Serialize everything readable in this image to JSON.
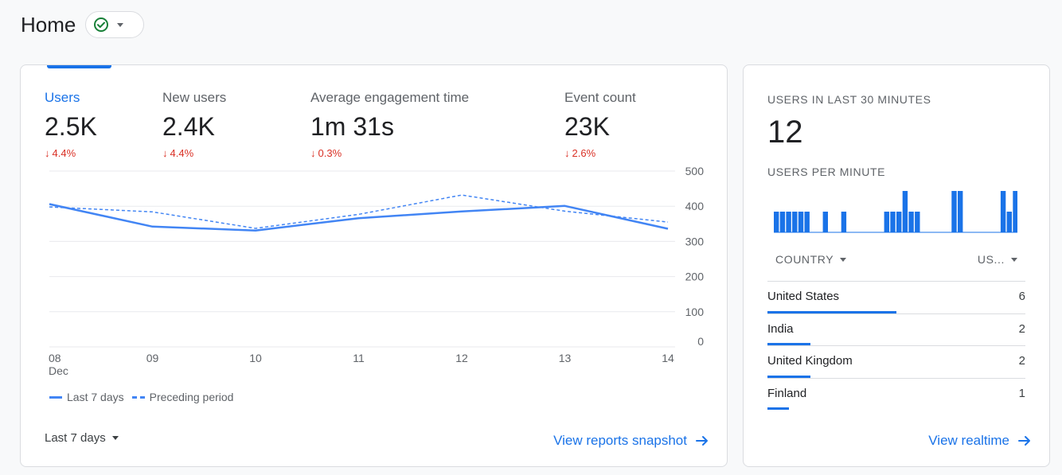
{
  "header": {
    "title": "Home",
    "status_icon": "check-circle-icon",
    "status_color": "#188038"
  },
  "metrics": [
    {
      "label": "Users",
      "value": "2.5K",
      "delta": "4.4%",
      "active": true
    },
    {
      "label": "New users",
      "value": "2.4K",
      "delta": "4.4%",
      "active": false
    },
    {
      "label": "Average engagement time",
      "value": "1m 31s",
      "delta": "0.3%",
      "active": false
    },
    {
      "label": "Event count",
      "value": "23K",
      "delta": "2.6%",
      "active": false
    }
  ],
  "delta_color": "#d93025",
  "chart_data": {
    "type": "line",
    "x": [
      "08",
      "09",
      "10",
      "11",
      "12",
      "13",
      "14"
    ],
    "x_sublabel": "Dec",
    "yticks": [
      500,
      400,
      300,
      200,
      100,
      0
    ],
    "ylim": [
      0,
      500
    ],
    "grid": true,
    "legend_position": "bottom-left",
    "series": [
      {
        "name": "Last 7 days",
        "style": "solid",
        "color": "#4285f4",
        "values": [
          406,
          342,
          331,
          366,
          385,
          401,
          336
        ]
      },
      {
        "name": "Preceding period",
        "style": "dashed",
        "color": "#4285f4",
        "values": [
          398,
          384,
          337,
          377,
          432,
          386,
          355
        ]
      }
    ]
  },
  "range": {
    "label": "Last 7 days"
  },
  "main_link": {
    "label": "View reports snapshot"
  },
  "realtime": {
    "title": "USERS IN LAST 30 MINUTES",
    "value": "12",
    "per_minute_label": "USERS PER MINUTE",
    "per_minute": [
      1,
      1,
      1,
      1,
      1,
      1,
      0,
      0,
      1,
      0,
      0,
      1,
      0,
      0,
      0,
      0,
      0,
      0,
      1,
      1,
      1,
      2,
      1,
      1,
      0,
      0,
      0,
      0,
      0,
      2,
      2,
      0,
      0,
      0,
      0,
      0,
      0,
      2,
      1,
      2
    ],
    "col_country": "COUNTRY",
    "col_users": "US...",
    "rows": [
      {
        "country": "United States",
        "users": "6",
        "count": 6
      },
      {
        "country": "India",
        "users": "2",
        "count": 2
      },
      {
        "country": "United Kingdom",
        "users": "2",
        "count": 2
      },
      {
        "country": "Finland",
        "users": "1",
        "count": 1
      }
    ],
    "link": {
      "label": "View realtime"
    }
  },
  "accent_color": "#1a73e8"
}
